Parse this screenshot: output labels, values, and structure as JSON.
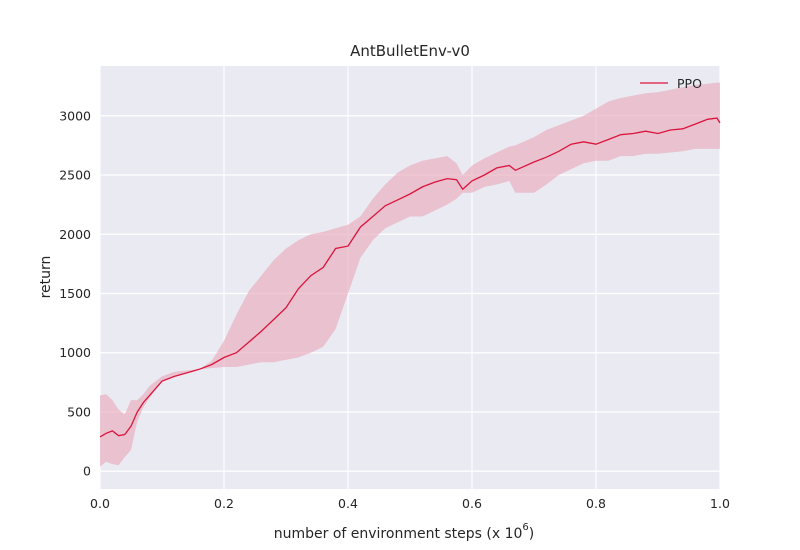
{
  "chart_data": {
    "type": "line",
    "title": "AntBulletEnv-v0",
    "xlabel": "number of environment steps (x 10",
    "xlabel_exponent": "6",
    "xlabel_suffix": ")",
    "ylabel": "return",
    "xlim": [
      0.0,
      1.0
    ],
    "ylim": [
      -150,
      3420
    ],
    "x_ticks": [
      0.0,
      0.2,
      0.4,
      0.6,
      0.8,
      1.0
    ],
    "x_tick_labels": [
      "0.0",
      "0.2",
      "0.4",
      "0.6",
      "0.8",
      "1.0"
    ],
    "y_ticks": [
      0,
      500,
      1000,
      1500,
      2000,
      2500,
      3000
    ],
    "y_tick_labels": [
      "0",
      "500",
      "1000",
      "1500",
      "2000",
      "2500",
      "3000"
    ],
    "grid": true,
    "legend": "top-right",
    "colors": {
      "line": "#dc143c",
      "band": "#e8a5b8",
      "background": "#eaeaf2",
      "grid": "#ffffff"
    },
    "series": [
      {
        "name": "PPO",
        "x": [
          0.0,
          0.01,
          0.02,
          0.03,
          0.04,
          0.05,
          0.06,
          0.07,
          0.08,
          0.1,
          0.12,
          0.14,
          0.16,
          0.18,
          0.2,
          0.22,
          0.24,
          0.26,
          0.28,
          0.3,
          0.32,
          0.34,
          0.36,
          0.38,
          0.4,
          0.42,
          0.44,
          0.46,
          0.48,
          0.5,
          0.52,
          0.54,
          0.56,
          0.575,
          0.585,
          0.6,
          0.62,
          0.64,
          0.66,
          0.67,
          0.7,
          0.72,
          0.74,
          0.76,
          0.78,
          0.8,
          0.82,
          0.84,
          0.86,
          0.88,
          0.9,
          0.92,
          0.94,
          0.96,
          0.98,
          0.995,
          1.0
        ],
        "values": [
          290,
          320,
          340,
          300,
          310,
          380,
          500,
          580,
          640,
          760,
          800,
          830,
          860,
          900,
          960,
          1000,
          1090,
          1180,
          1280,
          1380,
          1540,
          1650,
          1720,
          1880,
          1900,
          2060,
          2150,
          2240,
          2290,
          2340,
          2400,
          2440,
          2470,
          2460,
          2380,
          2450,
          2500,
          2560,
          2580,
          2540,
          2610,
          2650,
          2700,
          2760,
          2780,
          2760,
          2800,
          2840,
          2850,
          2870,
          2850,
          2880,
          2890,
          2930,
          2970,
          2980,
          2940
        ],
        "lower": [
          40,
          80,
          60,
          50,
          120,
          180,
          420,
          540,
          620,
          760,
          800,
          830,
          860,
          870,
          880,
          880,
          900,
          920,
          920,
          940,
          960,
          1000,
          1050,
          1200,
          1500,
          1800,
          1950,
          2050,
          2100,
          2150,
          2150,
          2200,
          2250,
          2300,
          2350,
          2350,
          2400,
          2420,
          2450,
          2350,
          2350,
          2420,
          2500,
          2550,
          2600,
          2620,
          2620,
          2660,
          2660,
          2680,
          2680,
          2690,
          2700,
          2720,
          2720,
          2720,
          2720
        ],
        "upper": [
          640,
          650,
          600,
          520,
          480,
          600,
          600,
          650,
          720,
          800,
          840,
          850,
          860,
          930,
          1100,
          1320,
          1520,
          1650,
          1780,
          1880,
          1950,
          2000,
          2020,
          2050,
          2080,
          2150,
          2300,
          2420,
          2520,
          2580,
          2620,
          2640,
          2660,
          2600,
          2500,
          2580,
          2640,
          2690,
          2740,
          2750,
          2820,
          2880,
          2920,
          2960,
          3000,
          3060,
          3120,
          3150,
          3170,
          3190,
          3200,
          3220,
          3240,
          3260,
          3270,
          3280,
          3280
        ]
      }
    ]
  }
}
